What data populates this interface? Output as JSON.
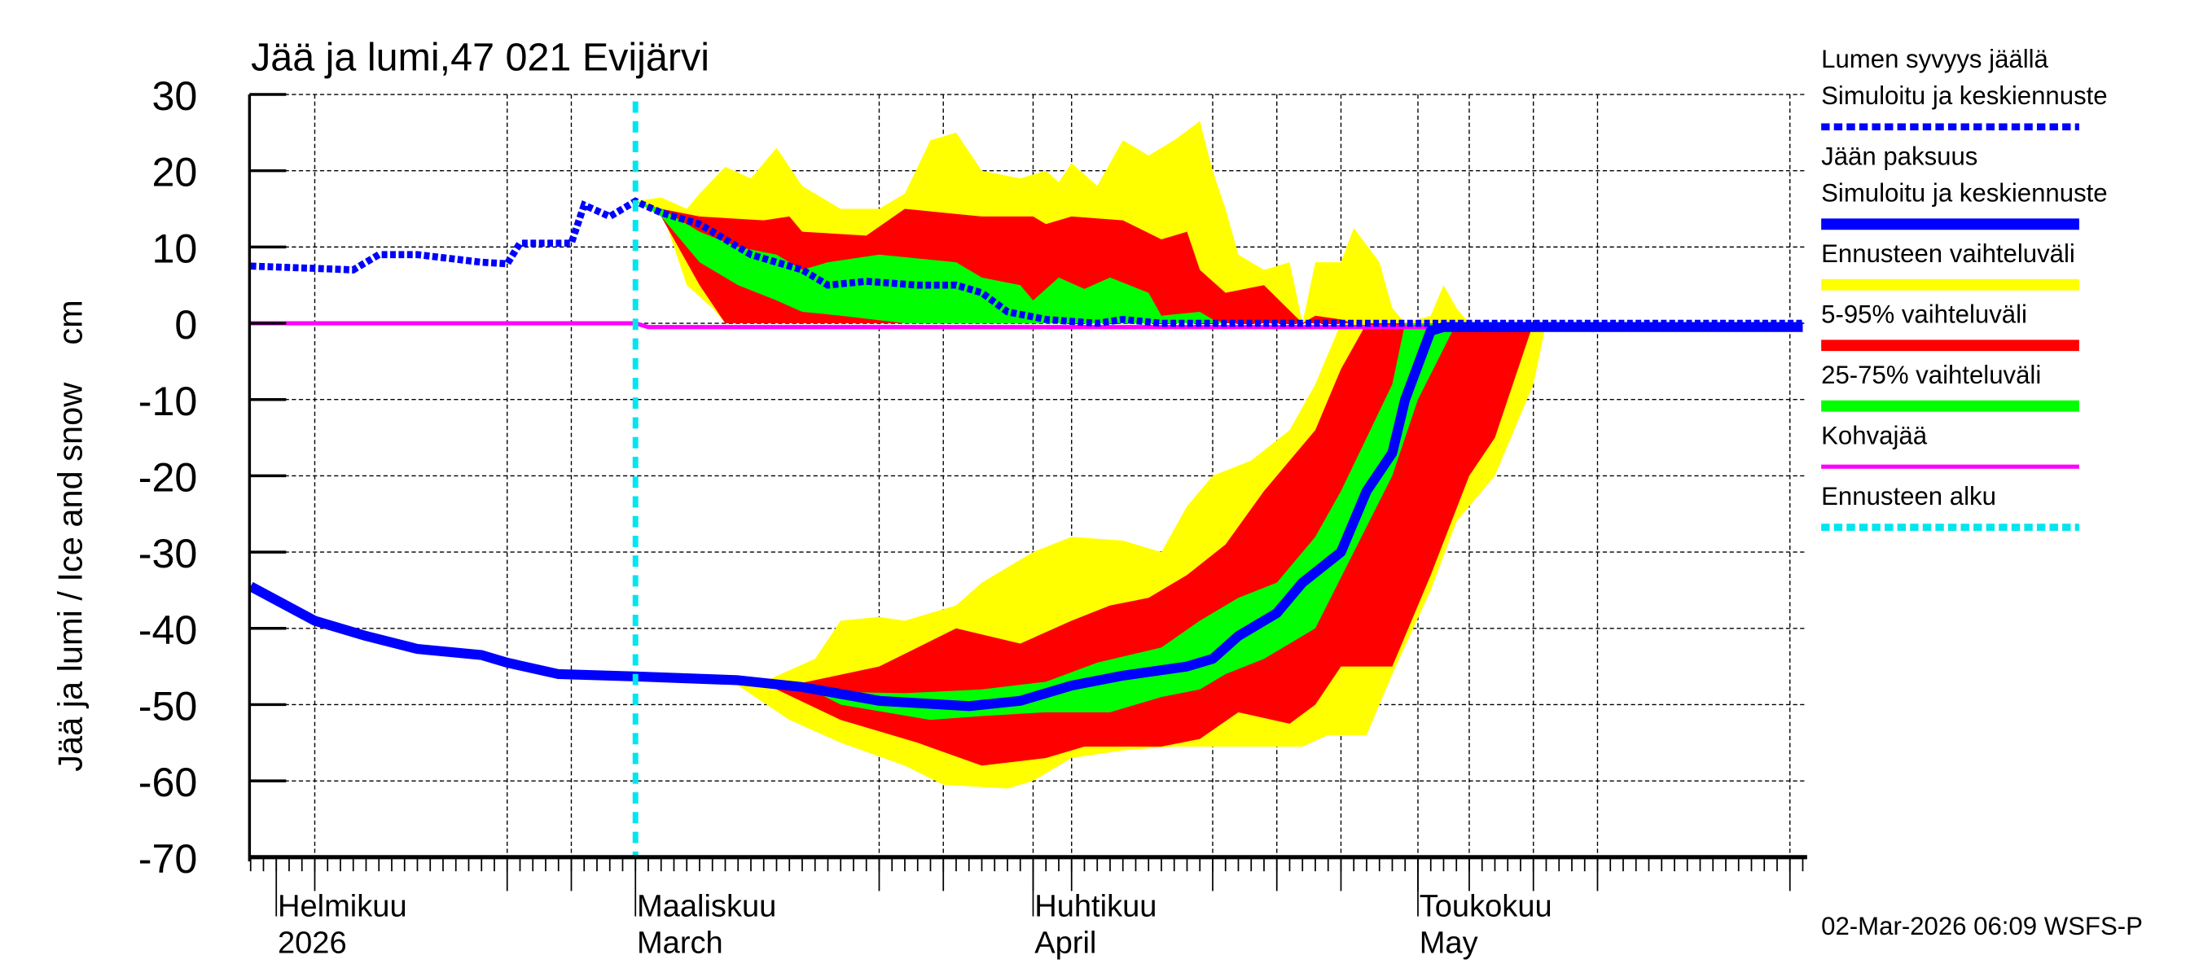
{
  "chart_data": {
    "type": "area",
    "title": "Jää ja lumi,47 021 Evijärvi",
    "ylabel": "Jää ja lumi / Ice and snow    cm",
    "ylim": [
      -70,
      30
    ],
    "yticks": [
      30,
      20,
      10,
      0,
      -10,
      -20,
      -30,
      -40,
      -50,
      -60,
      -70
    ],
    "xlim": [
      "2026-01-30",
      "2026-05-31"
    ],
    "grid": true,
    "legend_placement": "right",
    "month_labels": [
      {
        "date": "2026-02-01",
        "line1": "Helmikuu",
        "line2": "2026"
      },
      {
        "date": "2026-03-01",
        "line1": "Maaliskuu",
        "line2": "March"
      },
      {
        "date": "2026-04-01",
        "line1": "Huhtikuu",
        "line2": "April"
      },
      {
        "date": "2026-05-01",
        "line1": "Toukokuu",
        "line2": "May"
      }
    ],
    "x_gridlines": [
      "2026-02-04",
      "2026-02-19",
      "2026-02-24",
      "2026-03-20",
      "2026-03-25",
      "2026-04-01",
      "2026-04-04",
      "2026-04-15",
      "2026-04-20",
      "2026-04-25",
      "2026-05-01",
      "2026-05-05",
      "2026-05-10",
      "2026-05-15",
      "2026-05-30"
    ],
    "forecast_start": "2026-03-01",
    "colors": {
      "snow": "#0000ff",
      "ice": "#0000ff",
      "range": "#ffff00",
      "p5_95": "#ff0000",
      "p25_75": "#00ff00",
      "slush": "#ff00ff",
      "forecast_start": "#00e5ee"
    },
    "snow_depth": [
      [
        "2026-01-30",
        7.5
      ],
      [
        "2026-02-04",
        7.2
      ],
      [
        "2026-02-07",
        7
      ],
      [
        "2026-02-09",
        9
      ],
      [
        "2026-02-12",
        9
      ],
      [
        "2026-02-17",
        8
      ],
      [
        "2026-02-19",
        7.8
      ],
      [
        "2026-02-20",
        10.5
      ],
      [
        "2026-02-24",
        10.5
      ],
      [
        "2026-02-25",
        15.5
      ],
      [
        "2026-02-27",
        14
      ],
      [
        "2026-03-01",
        16
      ],
      [
        "2026-03-03",
        14.5
      ],
      [
        "2026-03-06",
        13
      ],
      [
        "2026-03-10",
        9
      ],
      [
        "2026-03-14",
        7
      ],
      [
        "2026-03-16",
        5
      ],
      [
        "2026-03-19",
        5.5
      ],
      [
        "2026-03-23",
        5
      ],
      [
        "2026-03-26",
        5
      ],
      [
        "2026-03-28",
        4
      ],
      [
        "2026-03-30",
        1.5
      ],
      [
        "2026-04-02",
        0.5
      ],
      [
        "2026-04-06",
        0
      ],
      [
        "2026-04-08",
        0.5
      ],
      [
        "2026-04-11",
        0
      ],
      [
        "2026-05-31",
        0
      ]
    ],
    "ice_thickness": [
      [
        "2026-01-30",
        -34.5
      ],
      [
        "2026-02-04",
        -39
      ],
      [
        "2026-02-08",
        -41
      ],
      [
        "2026-02-12",
        -42.7
      ],
      [
        "2026-02-17",
        -43.5
      ],
      [
        "2026-02-19",
        -44.5
      ],
      [
        "2026-02-23",
        -46
      ],
      [
        "2026-03-01",
        -46.3
      ],
      [
        "2026-03-09",
        -46.8
      ],
      [
        "2026-03-14",
        -47.7
      ],
      [
        "2026-03-20",
        -49.5
      ],
      [
        "2026-03-27",
        -50.2
      ],
      [
        "2026-03-31",
        -49.5
      ],
      [
        "2026-04-04",
        -47.5
      ],
      [
        "2026-04-08",
        -46.2
      ],
      [
        "2026-04-13",
        -45
      ],
      [
        "2026-04-15",
        -44
      ],
      [
        "2026-04-17",
        -41
      ],
      [
        "2026-04-20",
        -38
      ],
      [
        "2026-04-22",
        -34
      ],
      [
        "2026-04-25",
        -30
      ],
      [
        "2026-04-27",
        -22
      ],
      [
        "2026-04-29",
        -17
      ],
      [
        "2026-04-30",
        -10
      ],
      [
        "2026-05-02",
        -1
      ],
      [
        "2026-05-03",
        -0.5
      ],
      [
        "2026-05-31",
        -0.5
      ]
    ],
    "slush_ice": [
      [
        "2026-01-30",
        0
      ],
      [
        "2026-03-01",
        0
      ],
      [
        "2026-03-02",
        -0.5
      ],
      [
        "2026-05-31",
        -0.5
      ]
    ],
    "snow_bands": {
      "range": {
        "upper": [
          [
            "2026-03-01",
            16
          ],
          [
            "2026-03-03",
            16.5
          ],
          [
            "2026-03-05",
            15
          ],
          [
            "2026-03-06",
            17
          ],
          [
            "2026-03-08",
            20.5
          ],
          [
            "2026-03-10",
            19
          ],
          [
            "2026-03-12",
            23
          ],
          [
            "2026-03-14",
            18
          ],
          [
            "2026-03-17",
            15
          ],
          [
            "2026-03-20",
            15
          ],
          [
            "2026-03-22",
            17
          ],
          [
            "2026-03-24",
            24
          ],
          [
            "2026-03-26",
            25
          ],
          [
            "2026-03-28",
            20
          ],
          [
            "2026-03-31",
            19
          ],
          [
            "2026-04-02",
            20
          ],
          [
            "2026-04-03",
            18.5
          ],
          [
            "2026-04-04",
            21
          ],
          [
            "2026-04-06",
            18
          ],
          [
            "2026-04-08",
            24
          ],
          [
            "2026-04-10",
            22
          ],
          [
            "2026-04-12",
            24
          ],
          [
            "2026-04-14",
            26.5
          ],
          [
            "2026-04-15",
            20
          ],
          [
            "2026-04-16",
            15
          ],
          [
            "2026-04-17",
            9
          ],
          [
            "2026-04-19",
            7
          ],
          [
            "2026-04-21",
            8
          ],
          [
            "2026-04-22",
            0
          ],
          [
            "2026-04-23",
            8
          ],
          [
            "2026-04-25",
            8
          ],
          [
            "2026-04-26",
            12.5
          ],
          [
            "2026-04-28",
            8
          ],
          [
            "2026-04-29",
            2
          ],
          [
            "2026-04-30",
            0
          ],
          [
            "2026-05-02",
            1
          ],
          [
            "2026-05-03",
            5
          ],
          [
            "2026-05-04",
            2
          ],
          [
            "2026-05-05",
            0
          ]
        ],
        "lower": [
          [
            "2026-03-01",
            16
          ],
          [
            "2026-03-03",
            15
          ],
          [
            "2026-03-05",
            5
          ],
          [
            "2026-03-07",
            2
          ],
          [
            "2026-03-08",
            0
          ],
          [
            "2026-05-05",
            0
          ]
        ]
      },
      "p5_95": {
        "upper": [
          [
            "2026-03-01",
            16
          ],
          [
            "2026-03-03",
            15
          ],
          [
            "2026-03-06",
            14
          ],
          [
            "2026-03-11",
            13.5
          ],
          [
            "2026-03-13",
            14
          ],
          [
            "2026-03-14",
            12
          ],
          [
            "2026-03-19",
            11.5
          ],
          [
            "2026-03-22",
            15
          ],
          [
            "2026-03-28",
            14
          ],
          [
            "2026-04-01",
            14
          ],
          [
            "2026-04-02",
            13
          ],
          [
            "2026-04-04",
            14
          ],
          [
            "2026-04-08",
            13.5
          ],
          [
            "2026-04-11",
            11
          ],
          [
            "2026-04-13",
            12
          ],
          [
            "2026-04-14",
            7
          ],
          [
            "2026-04-16",
            4
          ],
          [
            "2026-04-19",
            5
          ],
          [
            "2026-04-22",
            0
          ],
          [
            "2026-04-23",
            1
          ],
          [
            "2026-04-25",
            0.5
          ],
          [
            "2026-04-26",
            0
          ]
        ],
        "lower": [
          [
            "2026-03-01",
            16
          ],
          [
            "2026-03-03",
            14
          ],
          [
            "2026-03-06",
            5
          ],
          [
            "2026-03-08",
            0
          ],
          [
            "2026-04-26",
            0
          ]
        ]
      },
      "p25_75": {
        "upper": [
          [
            "2026-03-01",
            16
          ],
          [
            "2026-03-03",
            15
          ],
          [
            "2026-03-06",
            12
          ],
          [
            "2026-03-09",
            10
          ],
          [
            "2026-03-12",
            9
          ],
          [
            "2026-03-14",
            7
          ],
          [
            "2026-03-16",
            8
          ],
          [
            "2026-03-20",
            9
          ],
          [
            "2026-03-26",
            8
          ],
          [
            "2026-03-28",
            6
          ],
          [
            "2026-03-31",
            5
          ],
          [
            "2026-04-01",
            3
          ],
          [
            "2026-04-03",
            6
          ],
          [
            "2026-04-05",
            4.5
          ],
          [
            "2026-04-07",
            6
          ],
          [
            "2026-04-10",
            4
          ],
          [
            "2026-04-11",
            1
          ],
          [
            "2026-04-14",
            1.5
          ],
          [
            "2026-04-15",
            0.5
          ],
          [
            "2026-04-16",
            0
          ]
        ],
        "lower": [
          [
            "2026-03-01",
            16
          ],
          [
            "2026-03-03",
            14
          ],
          [
            "2026-03-06",
            8
          ],
          [
            "2026-03-09",
            5
          ],
          [
            "2026-03-12",
            3
          ],
          [
            "2026-03-14",
            1.5
          ],
          [
            "2026-03-17",
            1
          ],
          [
            "2026-03-22",
            0
          ],
          [
            "2026-04-16",
            0
          ]
        ]
      }
    },
    "ice_bands": {
      "range": {
        "upper": [
          [
            "2026-03-01",
            -46.3
          ],
          [
            "2026-03-11",
            -47
          ],
          [
            "2026-03-15",
            -44
          ],
          [
            "2026-03-17",
            -39
          ],
          [
            "2026-03-20",
            -38.5
          ],
          [
            "2026-03-22",
            -39
          ],
          [
            "2026-03-26",
            -37
          ],
          [
            "2026-03-28",
            -34
          ],
          [
            "2026-04-01",
            -30
          ],
          [
            "2026-04-04",
            -28
          ],
          [
            "2026-04-08",
            -28.5
          ],
          [
            "2026-04-11",
            -30
          ],
          [
            "2026-04-13",
            -24
          ],
          [
            "2026-04-15",
            -20
          ],
          [
            "2026-04-18",
            -18
          ],
          [
            "2026-04-21",
            -14
          ],
          [
            "2026-04-23",
            -8
          ],
          [
            "2026-04-25",
            0
          ],
          [
            "2026-05-11",
            0
          ]
        ],
        "lower": [
          [
            "2026-03-01",
            -46.3
          ],
          [
            "2026-03-09",
            -47.5
          ],
          [
            "2026-03-13",
            -52
          ],
          [
            "2026-03-17",
            -55
          ],
          [
            "2026-03-22",
            -58
          ],
          [
            "2026-03-25",
            -60.5
          ],
          [
            "2026-03-30",
            -61
          ],
          [
            "2026-04-01",
            -60
          ],
          [
            "2026-04-04",
            -57
          ],
          [
            "2026-04-08",
            -56
          ],
          [
            "2026-04-12",
            -55.5
          ],
          [
            "2026-04-22",
            -55.5
          ],
          [
            "2026-04-24",
            -54
          ],
          [
            "2026-04-27",
            -54
          ],
          [
            "2026-04-29",
            -46
          ],
          [
            "2026-05-02",
            -35
          ],
          [
            "2026-05-04",
            -26
          ],
          [
            "2026-05-07",
            -20
          ],
          [
            "2026-05-10",
            -8
          ],
          [
            "2026-05-11",
            0
          ]
        ]
      },
      "p5_95": {
        "upper": [
          [
            "2026-03-11",
            -47.2
          ],
          [
            "2026-03-13",
            -47.5
          ],
          [
            "2026-03-20",
            -45
          ],
          [
            "2026-03-23",
            -42.5
          ],
          [
            "2026-03-26",
            -40
          ],
          [
            "2026-03-31",
            -42
          ],
          [
            "2026-04-04",
            -39
          ],
          [
            "2026-04-07",
            -37
          ],
          [
            "2026-04-10",
            -36
          ],
          [
            "2026-04-13",
            -33
          ],
          [
            "2026-04-16",
            -29
          ],
          [
            "2026-04-19",
            -22
          ],
          [
            "2026-04-23",
            -14
          ],
          [
            "2026-04-25",
            -6
          ],
          [
            "2026-04-27",
            0
          ],
          [
            "2026-05-10",
            0
          ]
        ],
        "lower": [
          [
            "2026-03-11",
            -47.2
          ],
          [
            "2026-03-17",
            -52
          ],
          [
            "2026-03-23",
            -55
          ],
          [
            "2026-03-28",
            -58
          ],
          [
            "2026-04-02",
            -57
          ],
          [
            "2026-04-05",
            -55.5
          ],
          [
            "2026-04-11",
            -55.5
          ],
          [
            "2026-04-14",
            -54.5
          ],
          [
            "2026-04-17",
            -51
          ],
          [
            "2026-04-21",
            -52.5
          ],
          [
            "2026-04-23",
            -50
          ],
          [
            "2026-04-25",
            -45
          ],
          [
            "2026-04-29",
            -45
          ],
          [
            "2026-05-02",
            -33
          ],
          [
            "2026-05-05",
            -20
          ],
          [
            "2026-05-07",
            -15
          ],
          [
            "2026-05-10",
            0
          ]
        ]
      },
      "p25_75": {
        "upper": [
          [
            "2026-03-15",
            -48.3
          ],
          [
            "2026-03-22",
            -48.5
          ],
          [
            "2026-03-28",
            -48
          ],
          [
            "2026-04-02",
            -47
          ],
          [
            "2026-04-06",
            -44.5
          ],
          [
            "2026-04-11",
            -42.5
          ],
          [
            "2026-04-14",
            -39
          ],
          [
            "2026-04-17",
            -36
          ],
          [
            "2026-04-20",
            -34
          ],
          [
            "2026-04-23",
            -28
          ],
          [
            "2026-04-25",
            -22
          ],
          [
            "2026-04-27",
            -15
          ],
          [
            "2026-04-29",
            -8
          ],
          [
            "2026-04-30",
            0
          ],
          [
            "2026-05-04",
            0
          ]
        ],
        "lower": [
          [
            "2026-03-15",
            -48.3
          ],
          [
            "2026-03-17",
            -50
          ],
          [
            "2026-03-24",
            -52
          ],
          [
            "2026-03-28",
            -51.5
          ],
          [
            "2026-04-02",
            -51
          ],
          [
            "2026-04-07",
            -51
          ],
          [
            "2026-04-11",
            -49
          ],
          [
            "2026-04-14",
            -48
          ],
          [
            "2026-04-16",
            -46
          ],
          [
            "2026-04-19",
            -44
          ],
          [
            "2026-04-23",
            -40
          ],
          [
            "2026-04-26",
            -30
          ],
          [
            "2026-04-29",
            -20
          ],
          [
            "2026-05-01",
            -10
          ],
          [
            "2026-05-04",
            0
          ]
        ]
      }
    },
    "legend": [
      {
        "line1": "Lumen syvyys jäällä",
        "line2": "Simuloitu ja keskiennuste",
        "style": "dotted",
        "color": "#0000ff"
      },
      {
        "line1": "Jään paksuus",
        "line2": "Simuloitu ja keskiennuste",
        "style": "solid-thick",
        "color": "#0000ff"
      },
      {
        "line1": "Ennusteen vaihteluväli",
        "style": "band",
        "color": "#ffff00"
      },
      {
        "line1": "5-95% vaihteluväli",
        "style": "band",
        "color": "#ff0000"
      },
      {
        "line1": "25-75% vaihteluväli",
        "style": "band",
        "color": "#00ff00"
      },
      {
        "line1": "Kohvajää",
        "style": "solid",
        "color": "#ff00ff"
      },
      {
        "line1": "Ennusteen alku",
        "style": "dotted",
        "color": "#00e5ee"
      }
    ],
    "timestamp": "02-Mar-2026 06:09 WSFS-P"
  }
}
